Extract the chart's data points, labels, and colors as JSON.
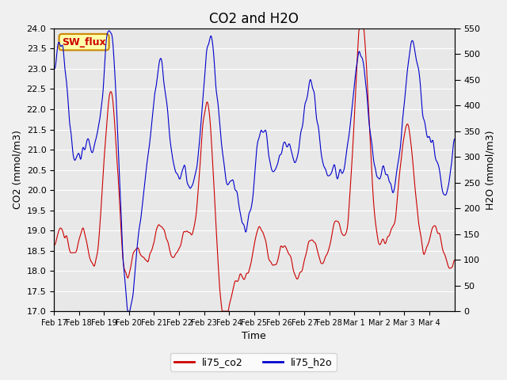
{
  "title": "CO2 and H2O",
  "xlabel": "Time",
  "ylabel_left": "CO2 (mmol/m3)",
  "ylabel_right": "H2O (mmol/m3)",
  "co2_ylim": [
    17.0,
    24.0
  ],
  "h2o_ylim": [
    0,
    550
  ],
  "h2o_yticks": [
    0,
    50,
    100,
    150,
    200,
    250,
    300,
    350,
    400,
    450,
    500,
    550
  ],
  "co2_yticks": [
    17.0,
    17.5,
    18.0,
    18.5,
    19.0,
    19.5,
    20.0,
    20.5,
    21.0,
    21.5,
    22.0,
    22.5,
    23.0,
    23.5,
    24.0
  ],
  "xtick_labels": [
    "Feb 17",
    "Feb 18",
    "Feb 19",
    "Feb 20",
    "Feb 21",
    "Feb 22",
    "Feb 23",
    "Feb 24",
    "Feb 25",
    "Feb 26",
    "Feb 27",
    "Feb 28",
    "Mar 1",
    "Mar 2",
    "Mar 3",
    "Mar 4"
  ],
  "co2_color": "#cc0000",
  "h2o_color": "#0000cc",
  "co2_label": "li75_co2",
  "h2o_label": "li75_h2o",
  "annotation_text": "SW_flux",
  "annotation_bg": "#ffffaa",
  "annotation_border": "#cc8800",
  "annotation_fg": "#cc0000",
  "fig_bg_color": "#f0f0f0",
  "plot_bg": "#e8e8e8",
  "grid_color": "#ffffff",
  "title_fontsize": 12,
  "axis_label_fontsize": 9,
  "tick_fontsize": 8,
  "legend_fontsize": 9
}
